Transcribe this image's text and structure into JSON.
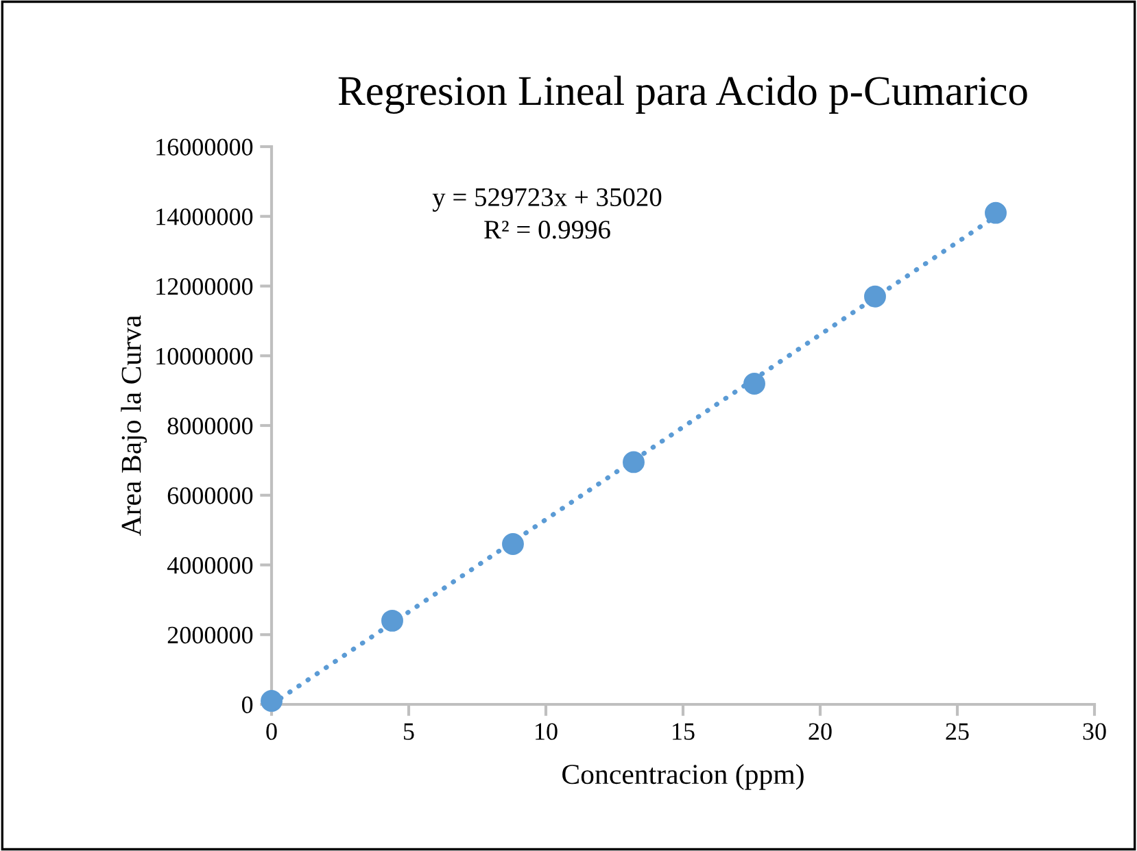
{
  "chart_data": {
    "type": "scatter",
    "title": "Regresion Lineal para Acido p-Cumarico",
    "xlabel": "Concentracion (ppm)",
    "ylabel": "Area Bajo la Curva",
    "annotations": [
      "y = 529723x + 35020",
      "R² = 0.9996"
    ],
    "x": [
      0,
      4.4,
      8.8,
      13.2,
      17.6,
      22,
      26.4
    ],
    "series": [
      {
        "color": "#5b9bd5",
        "values": [
          100000,
          2400000,
          4600000,
          6950000,
          9200000,
          11700000,
          14100000
        ]
      },
      {
        "type": "line",
        "color": "#5b9bd5",
        "x": [
          0,
          26.4
        ],
        "values": [
          0,
          14000000
        ],
        "line_style": "dotted",
        "marker": "none"
      }
    ],
    "marker": "circle",
    "xlim": [
      0,
      30
    ],
    "xticks": [
      0,
      5,
      10,
      15,
      20,
      25,
      30
    ],
    "ylim": [
      0,
      16000000
    ],
    "yticks": [
      0,
      2000000,
      4000000,
      6000000,
      8000000,
      10000000,
      12000000,
      14000000,
      16000000
    ],
    "grid": false,
    "legend": false
  }
}
